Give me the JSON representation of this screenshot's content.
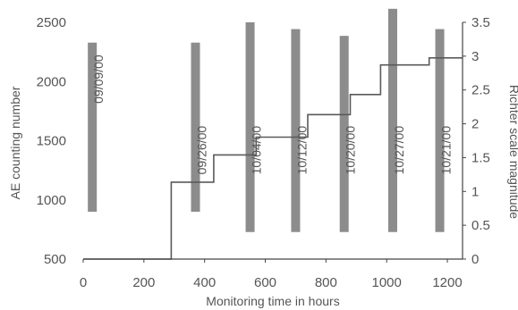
{
  "chart_data": {
    "type": "bar+step-line",
    "xlabel": "Monitoring  time in hours",
    "ylabel_left": "AE counting number",
    "ylabel_right": "Richter scale magnitude",
    "xlim": [
      0,
      1250
    ],
    "ylim_left": [
      500,
      2500
    ],
    "ylim_right": [
      0,
      3.5
    ],
    "x_ticks": [
      0,
      200,
      400,
      600,
      800,
      1000,
      1200
    ],
    "y_ticks_left": [
      500,
      1000,
      1500,
      2000,
      2500
    ],
    "y_ticks_right": [
      0,
      0.5,
      1,
      1.5,
      2,
      2.5,
      3,
      3.5
    ],
    "y_tick_labels_right": [
      "0",
      "0.5",
      "1",
      "1.5",
      "2",
      "2.5",
      "3",
      "3.5"
    ],
    "earthquakes": [
      {
        "date": "09/09/00",
        "time": 30,
        "magnitude": 3.2,
        "magnitude_floor": 0.7
      },
      {
        "date": "09/26/00",
        "time": 370,
        "magnitude": 3.2,
        "magnitude_floor": 0.7
      },
      {
        "date": "10/04/00",
        "time": 550,
        "magnitude": 3.5,
        "magnitude_floor": 0.4
      },
      {
        "date": "10/12/00",
        "time": 700,
        "magnitude": 3.4,
        "magnitude_floor": 0.4
      },
      {
        "date": "10/20/00",
        "time": 860,
        "magnitude": 3.3,
        "magnitude_floor": 0.4
      },
      {
        "date": "10/27/00",
        "time": 1020,
        "magnitude": 3.7,
        "magnitude_floor": 0.4
      },
      {
        "date": "10/21/00",
        "time": 1175,
        "magnitude": 3.4,
        "magnitude_floor": 0.4
      }
    ],
    "ae_step_series": [
      [
        0,
        500
      ],
      [
        290,
        500
      ],
      [
        290,
        1150
      ],
      [
        430,
        1150
      ],
      [
        430,
        1380
      ],
      [
        570,
        1380
      ],
      [
        570,
        1530
      ],
      [
        740,
        1530
      ],
      [
        740,
        1720
      ],
      [
        880,
        1720
      ],
      [
        880,
        1890
      ],
      [
        980,
        1890
      ],
      [
        980,
        2140
      ],
      [
        1140,
        2140
      ],
      [
        1140,
        2200
      ],
      [
        1250,
        2200
      ]
    ],
    "grid": false,
    "colors": {
      "bar": "#8c8c8c",
      "line": "#5a5a5a",
      "axis": "#444444",
      "text": "#555555"
    }
  }
}
